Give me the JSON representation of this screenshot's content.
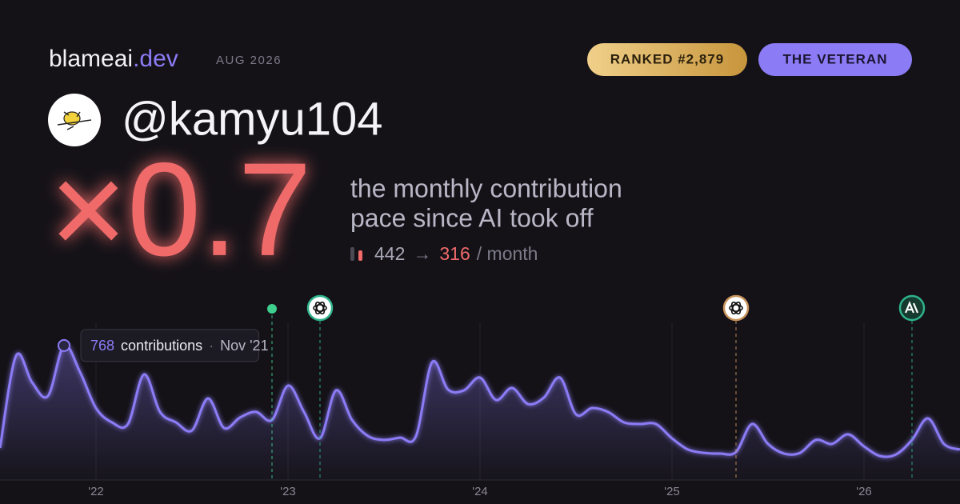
{
  "header": {
    "brand": "blameai",
    "brand_tld": ".dev",
    "date": "AUG 2026",
    "rank": "RANKED #2,879",
    "badge": "THE VETERAN"
  },
  "user": {
    "handle": "@kamyu104"
  },
  "stat": {
    "multiplier": "×0.7",
    "description": [
      "the monthly contribution",
      "pace since AI took off"
    ],
    "before": 442,
    "arrow": "→",
    "after": 316,
    "unit": "/ month"
  },
  "chart_data": {
    "type": "area",
    "color": "#8b7cf6",
    "x": [
      "2021-07",
      "2021-08",
      "2021-09",
      "2021-10",
      "2021-11",
      "2021-12",
      "2022-01",
      "2022-02",
      "2022-03",
      "2022-04",
      "2022-05",
      "2022-06",
      "2022-07",
      "2022-08",
      "2022-09",
      "2022-10",
      "2022-11",
      "2022-12",
      "2023-01",
      "2023-02",
      "2023-03",
      "2023-04",
      "2023-05",
      "2023-06",
      "2023-07",
      "2023-08",
      "2023-09",
      "2023-10",
      "2023-11",
      "2023-12",
      "2024-01",
      "2024-02",
      "2024-03",
      "2024-04",
      "2024-05",
      "2024-06",
      "2024-07",
      "2024-08",
      "2024-09",
      "2024-10",
      "2024-11",
      "2024-12",
      "2025-01",
      "2025-02",
      "2025-03",
      "2025-04",
      "2025-05",
      "2025-06",
      "2025-07",
      "2025-08",
      "2025-09",
      "2025-10",
      "2025-11",
      "2025-12",
      "2026-01",
      "2026-02",
      "2026-03",
      "2026-04",
      "2026-05",
      "2026-06",
      "2026-07"
    ],
    "values": [
      183,
      709,
      558,
      480,
      768,
      617,
      411,
      329,
      320,
      603,
      389,
      329,
      283,
      466,
      297,
      357,
      389,
      343,
      539,
      389,
      238,
      512,
      343,
      251,
      229,
      242,
      251,
      672,
      517,
      512,
      585,
      457,
      526,
      434,
      471,
      585,
      375,
      411,
      389,
      329,
      320,
      320,
      238,
      174,
      155,
      151,
      160,
      320,
      206,
      151,
      155,
      229,
      206,
      261,
      192,
      137,
      146,
      229,
      352,
      206,
      174
    ],
    "xlim": [
      "2021-07",
      "2026-07"
    ],
    "xticks": [
      {
        "value": "2022-01",
        "label": "'22"
      },
      {
        "value": "2023-01",
        "label": "'23"
      },
      {
        "value": "2024-01",
        "label": "'24"
      },
      {
        "value": "2025-01",
        "label": "'25"
      },
      {
        "value": "2026-01",
        "label": "'26"
      }
    ],
    "ylim": [
      0,
      900
    ],
    "highlight": {
      "x": "2021-11",
      "unit": "contributions",
      "separator": "·",
      "x_label": "Nov '21"
    },
    "events": [
      {
        "x": "2022-12",
        "icon": "dot",
        "color": "#3ecf8e"
      },
      {
        "x": "2023-03",
        "icon": "openai",
        "color": "#2fb38a"
      },
      {
        "x": "2025-05",
        "icon": "openai",
        "color": "#c9935a"
      },
      {
        "x": "2026-04",
        "icon": "anthropic",
        "color": "#2fb38a"
      }
    ]
  }
}
